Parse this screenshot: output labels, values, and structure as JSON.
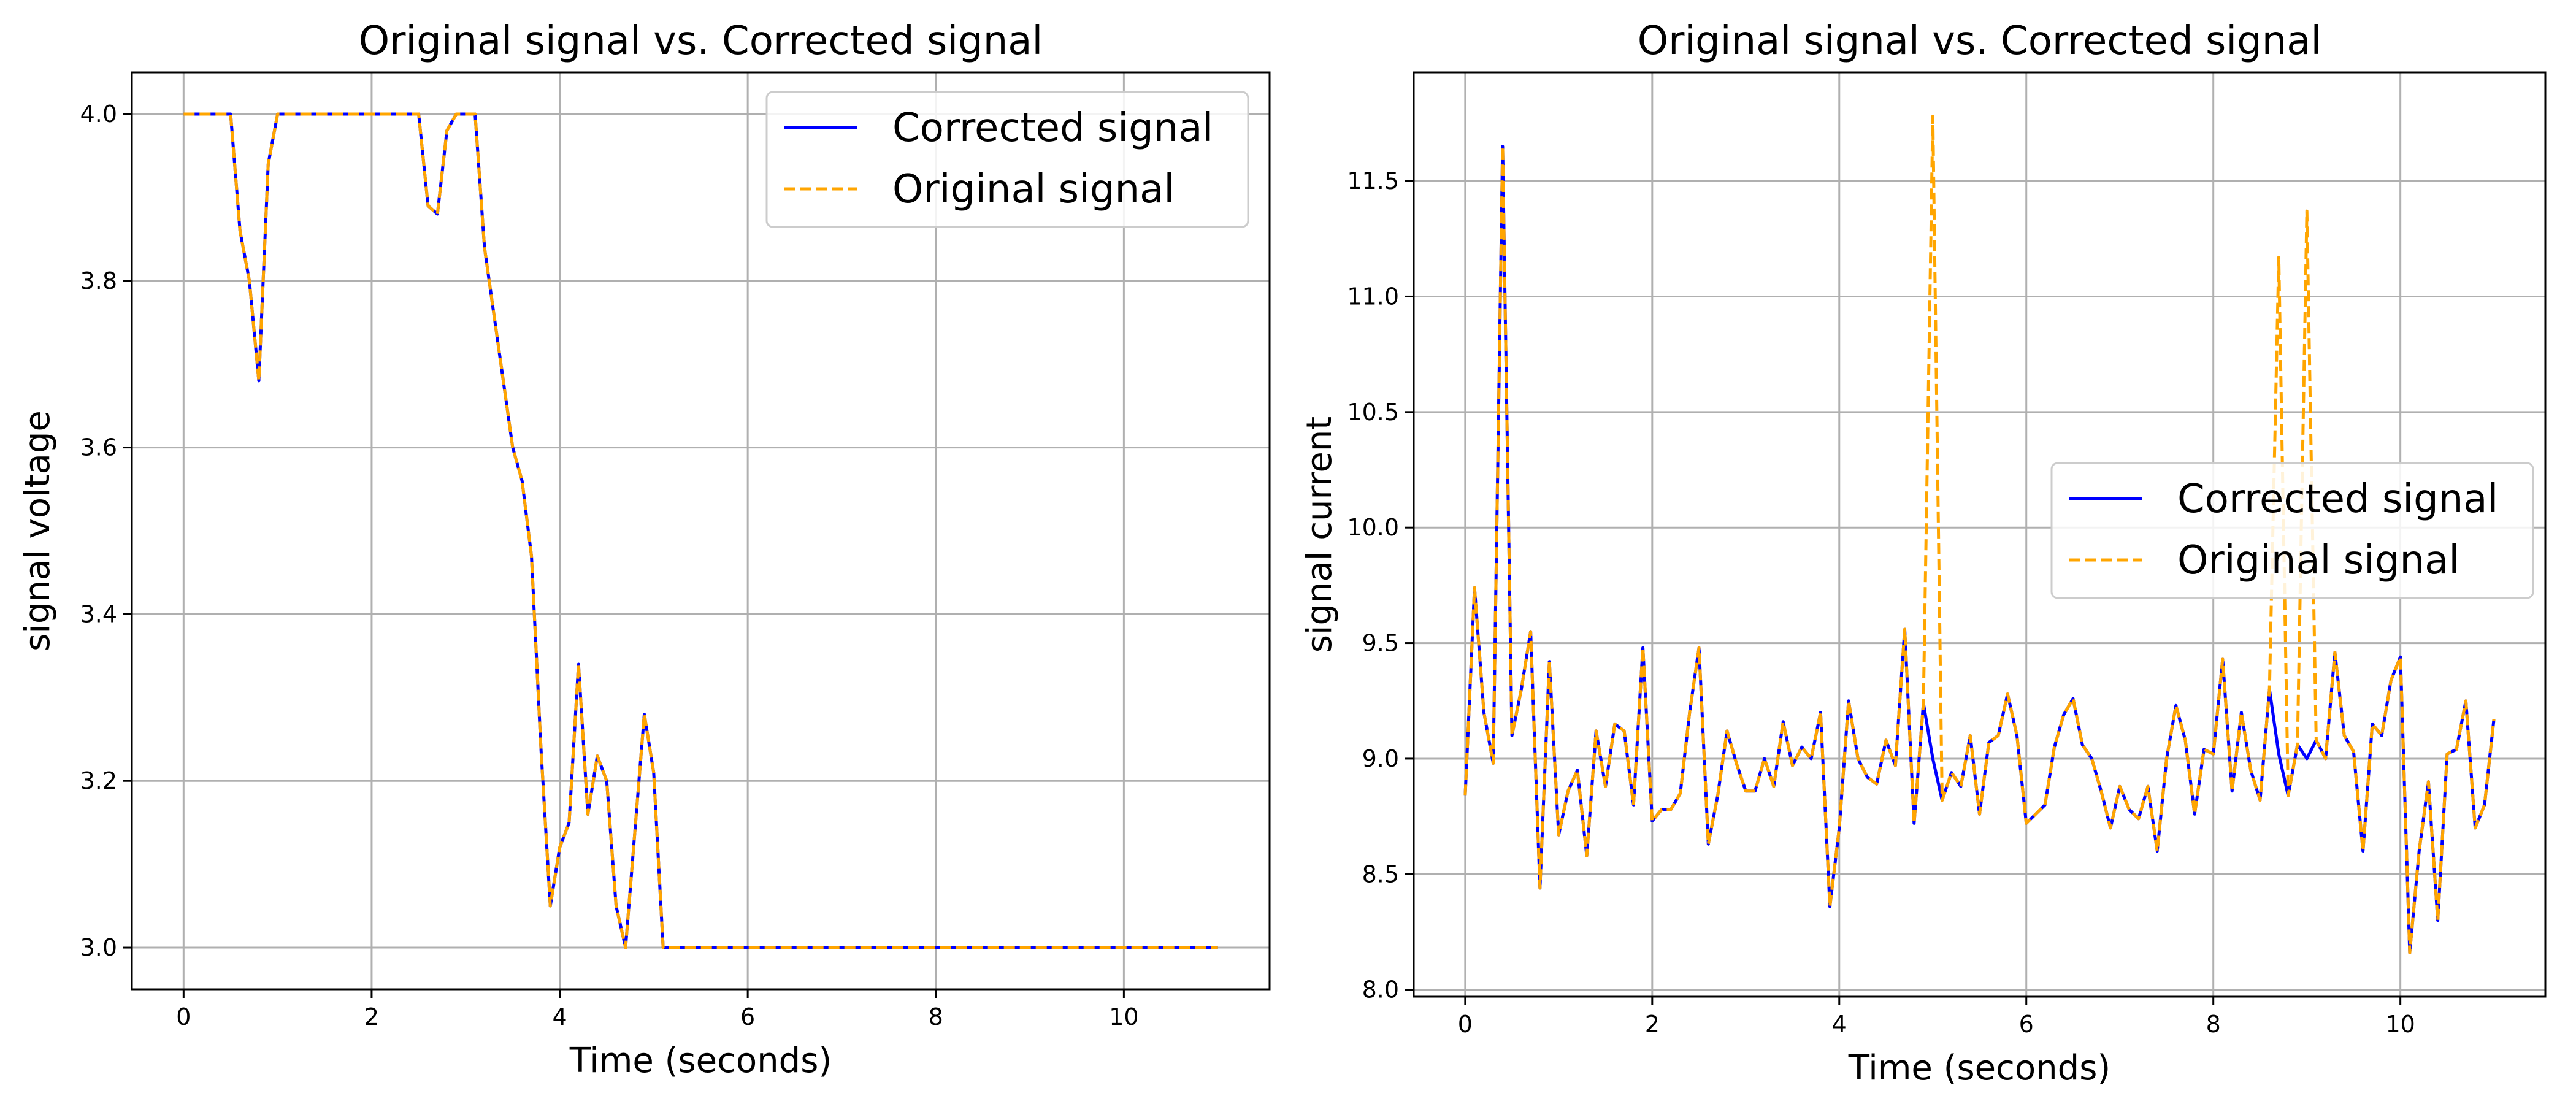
{
  "colors": {
    "corrected": "#0000ff",
    "original": "#ffa500"
  },
  "chart_data": [
    {
      "type": "line",
      "title": "Original signal vs. Corrected signal",
      "xlabel": "Time (seconds)",
      "ylabel": "signal voltage",
      "xlim": [
        -0.55,
        11.55
      ],
      "ylim": [
        2.95,
        4.05
      ],
      "xticks": [
        0,
        2,
        4,
        6,
        8,
        10
      ],
      "xtick_labels": [
        "0",
        "2",
        "4",
        "6",
        "8",
        "10"
      ],
      "yticks": [
        3.0,
        3.2,
        3.4,
        3.6,
        3.8,
        4.0
      ],
      "ytick_labels": [
        "3.0",
        "3.2",
        "3.4",
        "3.6",
        "3.8",
        "4.0"
      ],
      "grid": true,
      "legend_position": "upper-right",
      "series": [
        {
          "name": "Corrected signal",
          "style": "solid",
          "x": [
            0,
            0.5,
            0.6,
            0.7,
            0.8,
            0.9,
            1.0,
            1.1,
            2.5,
            2.6,
            2.7,
            2.8,
            2.9,
            3.1,
            3.2,
            3.3,
            3.4,
            3.5,
            3.6,
            3.7,
            3.8,
            3.9,
            4.0,
            4.1,
            4.2,
            4.3,
            4.4,
            4.5,
            4.6,
            4.7,
            4.8,
            4.9,
            5.0,
            5.1,
            11.0
          ],
          "y": [
            4.0,
            4.0,
            3.86,
            3.8,
            3.68,
            3.94,
            4.0,
            4.0,
            4.0,
            3.89,
            3.88,
            3.98,
            4.0,
            4.0,
            3.84,
            3.76,
            3.68,
            3.6,
            3.56,
            3.47,
            3.24,
            3.05,
            3.12,
            3.15,
            3.34,
            3.16,
            3.23,
            3.2,
            3.05,
            3.0,
            3.14,
            3.28,
            3.21,
            3.0,
            3.0
          ]
        },
        {
          "name": "Original signal",
          "style": "dashed",
          "x": [
            0,
            0.5,
            0.6,
            0.7,
            0.8,
            0.9,
            1.0,
            1.1,
            2.5,
            2.6,
            2.7,
            2.8,
            2.9,
            3.1,
            3.2,
            3.3,
            3.4,
            3.5,
            3.6,
            3.7,
            3.8,
            3.9,
            4.0,
            4.1,
            4.2,
            4.3,
            4.4,
            4.5,
            4.6,
            4.7,
            4.8,
            4.9,
            5.0,
            5.1,
            11.0
          ],
          "y": [
            4.0,
            4.0,
            3.86,
            3.8,
            3.68,
            3.94,
            4.0,
            4.0,
            4.0,
            3.89,
            3.88,
            3.98,
            4.0,
            4.0,
            3.84,
            3.76,
            3.68,
            3.6,
            3.56,
            3.47,
            3.24,
            3.05,
            3.12,
            3.15,
            3.34,
            3.16,
            3.23,
            3.2,
            3.05,
            3.0,
            3.14,
            3.28,
            3.21,
            3.0,
            3.0
          ]
        }
      ]
    },
    {
      "type": "line",
      "title": "Original signal vs. Corrected signal",
      "xlabel": "Time (seconds)",
      "ylabel": "signal current",
      "xlim": [
        -0.55,
        11.55
      ],
      "ylim": [
        7.97,
        11.97
      ],
      "xticks": [
        0,
        2,
        4,
        6,
        8,
        10
      ],
      "xtick_labels": [
        "0",
        "2",
        "4",
        "6",
        "8",
        "10"
      ],
      "yticks": [
        8.0,
        8.5,
        9.0,
        9.5,
        10.0,
        10.5,
        11.0,
        11.5
      ],
      "ytick_labels": [
        "8.0",
        "8.5",
        "9.0",
        "9.5",
        "10.0",
        "10.5",
        "11.0",
        "11.5"
      ],
      "grid": true,
      "legend_position": "center-right",
      "series": [
        {
          "name": "Corrected signal",
          "style": "solid",
          "x": [
            0,
            0.1,
            0.2,
            0.3,
            0.4,
            0.5,
            0.6,
            0.7,
            0.8,
            0.9,
            1.0,
            1.1,
            1.2,
            1.3,
            1.4,
            1.5,
            1.6,
            1.7,
            1.8,
            1.9,
            2.0,
            2.1,
            2.2,
            2.3,
            2.4,
            2.5,
            2.6,
            2.7,
            2.8,
            2.9,
            3.0,
            3.1,
            3.2,
            3.3,
            3.4,
            3.5,
            3.6,
            3.7,
            3.8,
            3.9,
            4.0,
            4.1,
            4.2,
            4.3,
            4.4,
            4.5,
            4.6,
            4.7,
            4.8,
            4.9,
            5.0,
            5.1,
            5.2,
            5.3,
            5.4,
            5.5,
            5.6,
            5.7,
            5.8,
            5.9,
            6.0,
            6.1,
            6.2,
            6.3,
            6.4,
            6.5,
            6.6,
            6.7,
            6.8,
            6.9,
            7.0,
            7.1,
            7.2,
            7.3,
            7.4,
            7.5,
            7.6,
            7.7,
            7.8,
            7.9,
            8.0,
            8.1,
            8.2,
            8.3,
            8.4,
            8.5,
            8.6,
            8.7,
            8.8,
            8.9,
            9.0,
            9.1,
            9.2,
            9.3,
            9.4,
            9.5,
            9.6,
            9.7,
            9.8,
            9.9,
            10.0,
            10.1,
            10.2,
            10.3,
            10.4,
            10.5,
            10.6,
            10.7,
            10.8,
            10.9,
            11.0
          ],
          "y": [
            8.84,
            9.74,
            9.2,
            8.98,
            11.65,
            9.1,
            9.3,
            9.55,
            8.44,
            9.42,
            8.67,
            8.86,
            8.95,
            8.58,
            9.12,
            8.88,
            9.15,
            9.12,
            8.8,
            9.48,
            8.73,
            8.78,
            8.78,
            8.85,
            9.2,
            9.48,
            8.63,
            8.84,
            9.12,
            8.98,
            8.86,
            8.86,
            9.0,
            8.88,
            9.16,
            8.97,
            9.05,
            9.0,
            9.2,
            8.36,
            8.7,
            9.25,
            9.0,
            8.92,
            8.89,
            9.08,
            8.97,
            9.56,
            8.72,
            9.24,
            9.0,
            8.82,
            8.94,
            8.88,
            9.1,
            8.76,
            9.07,
            9.1,
            9.28,
            9.1,
            8.72,
            8.76,
            8.8,
            9.05,
            9.19,
            9.26,
            9.06,
            9.0,
            8.86,
            8.7,
            8.88,
            8.78,
            8.74,
            8.88,
            8.6,
            9.0,
            9.23,
            9.08,
            8.76,
            9.04,
            9.02,
            9.43,
            8.86,
            9.2,
            8.95,
            8.82,
            9.3,
            9.02,
            8.84,
            9.06,
            9.0,
            9.08,
            9.0,
            9.46,
            9.1,
            9.03,
            8.6,
            9.15,
            9.1,
            9.34,
            9.44,
            8.16,
            8.6,
            8.9,
            8.3,
            9.02,
            9.04,
            9.25,
            8.7,
            8.8,
            9.17
          ]
        },
        {
          "name": "Original signal",
          "style": "dashed",
          "x": [
            0,
            0.1,
            0.2,
            0.3,
            0.4,
            0.5,
            0.6,
            0.7,
            0.8,
            0.9,
            1.0,
            1.1,
            1.2,
            1.3,
            1.4,
            1.5,
            1.6,
            1.7,
            1.8,
            1.9,
            2.0,
            2.1,
            2.2,
            2.3,
            2.4,
            2.5,
            2.6,
            2.7,
            2.8,
            2.9,
            3.0,
            3.1,
            3.2,
            3.3,
            3.4,
            3.5,
            3.6,
            3.7,
            3.8,
            3.9,
            4.0,
            4.1,
            4.2,
            4.3,
            4.4,
            4.5,
            4.6,
            4.7,
            4.8,
            4.9,
            5.0,
            5.1,
            5.2,
            5.3,
            5.4,
            5.5,
            5.6,
            5.7,
            5.8,
            5.9,
            6.0,
            6.1,
            6.2,
            6.3,
            6.4,
            6.5,
            6.6,
            6.7,
            6.8,
            6.9,
            7.0,
            7.1,
            7.2,
            7.3,
            7.4,
            7.5,
            7.6,
            7.7,
            7.8,
            7.9,
            8.0,
            8.1,
            8.2,
            8.3,
            8.4,
            8.5,
            8.6,
            8.7,
            8.8,
            8.9,
            9.0,
            9.1,
            9.2,
            9.3,
            9.4,
            9.5,
            9.6,
            9.7,
            9.8,
            9.9,
            10.0,
            10.1,
            10.2,
            10.3,
            10.4,
            10.5,
            10.6,
            10.7,
            10.8,
            10.9,
            11.0
          ],
          "y": [
            8.84,
            9.74,
            9.2,
            8.98,
            11.65,
            9.1,
            9.3,
            9.55,
            8.44,
            9.42,
            8.67,
            8.86,
            8.95,
            8.58,
            9.12,
            8.88,
            9.15,
            9.12,
            8.8,
            9.48,
            8.73,
            8.78,
            8.78,
            8.85,
            9.2,
            9.48,
            8.63,
            8.84,
            9.12,
            8.98,
            8.86,
            8.86,
            9.0,
            8.88,
            9.16,
            8.97,
            9.05,
            9.0,
            9.2,
            8.36,
            8.7,
            9.25,
            9.0,
            8.92,
            8.89,
            9.08,
            8.97,
            9.56,
            8.72,
            9.24,
            11.78,
            8.82,
            8.94,
            8.88,
            9.1,
            8.76,
            9.07,
            9.1,
            9.28,
            9.1,
            8.72,
            8.76,
            8.8,
            9.05,
            9.19,
            9.26,
            9.06,
            9.0,
            8.86,
            8.7,
            8.88,
            8.78,
            8.74,
            8.88,
            8.6,
            9.0,
            9.23,
            9.08,
            8.76,
            9.04,
            9.02,
            9.43,
            8.86,
            9.2,
            8.95,
            8.82,
            9.3,
            11.17,
            8.84,
            9.06,
            11.37,
            9.08,
            9.0,
            9.46,
            9.1,
            9.03,
            8.6,
            9.15,
            9.1,
            9.34,
            9.44,
            8.16,
            8.6,
            8.9,
            8.3,
            9.02,
            9.04,
            9.25,
            8.7,
            8.8,
            9.17
          ]
        }
      ]
    }
  ]
}
